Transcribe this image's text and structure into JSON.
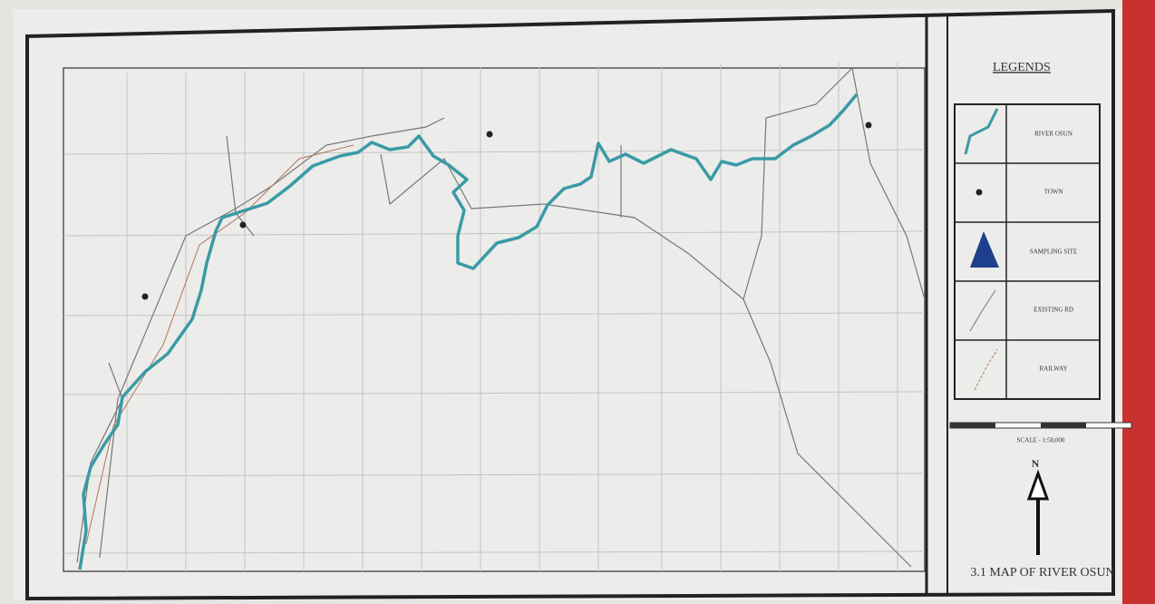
{
  "legend": {
    "title": "LEGENDS",
    "items": [
      {
        "label": "RIVER OSUN"
      },
      {
        "label": "TOWN"
      },
      {
        "label": "SAMPLING SITE"
      },
      {
        "label": "EXISTING RD"
      },
      {
        "label": "RAILWAY"
      }
    ]
  },
  "scale": {
    "label": "SCALE - 1:50,000"
  },
  "north": {
    "label": "N"
  },
  "map": {
    "title": "3.1 MAP OF RIVER OSUN"
  }
}
